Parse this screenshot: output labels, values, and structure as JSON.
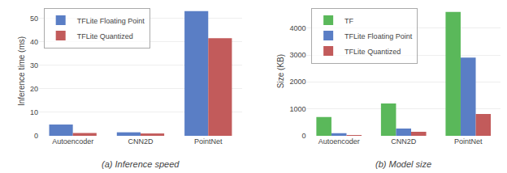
{
  "chart_data": [
    {
      "type": "bar",
      "title": "(a) Inference speed",
      "ylabel": "Inference time (ms)",
      "categories": [
        "Autoencoder",
        "CNN2D",
        "PointNet"
      ],
      "series": [
        {
          "name": "TFLite Floating Point",
          "color": "#5a7ec5",
          "values": [
            4.8,
            1.5,
            53.0
          ]
        },
        {
          "name": "TFLite Quantized",
          "color": "#c25b5b",
          "values": [
            1.2,
            1.0,
            41.5
          ]
        }
      ],
      "ylim": [
        0,
        55
      ],
      "yticks": [
        0,
        10,
        20,
        30,
        40,
        50
      ],
      "grid": true,
      "legend": "upper left"
    },
    {
      "type": "bar",
      "title": "(b) Model size",
      "ylabel": "Size (KB)",
      "categories": [
        "Autoencoder",
        "CNN2D",
        "PointNet"
      ],
      "series": [
        {
          "name": "TF",
          "color": "#5ab85a",
          "values": [
            700,
            1200,
            4600
          ]
        },
        {
          "name": "TFLite Floating Point",
          "color": "#5a7ec5",
          "values": [
            100,
            270,
            2900
          ]
        },
        {
          "name": "TFLite Quantized",
          "color": "#c25b5b",
          "values": [
            5,
            150,
            810
          ]
        }
      ],
      "ylim": [
        0,
        4800
      ],
      "yticks": [
        0,
        1000,
        2000,
        3000,
        4000
      ],
      "grid": true,
      "legend": "upper left"
    }
  ]
}
